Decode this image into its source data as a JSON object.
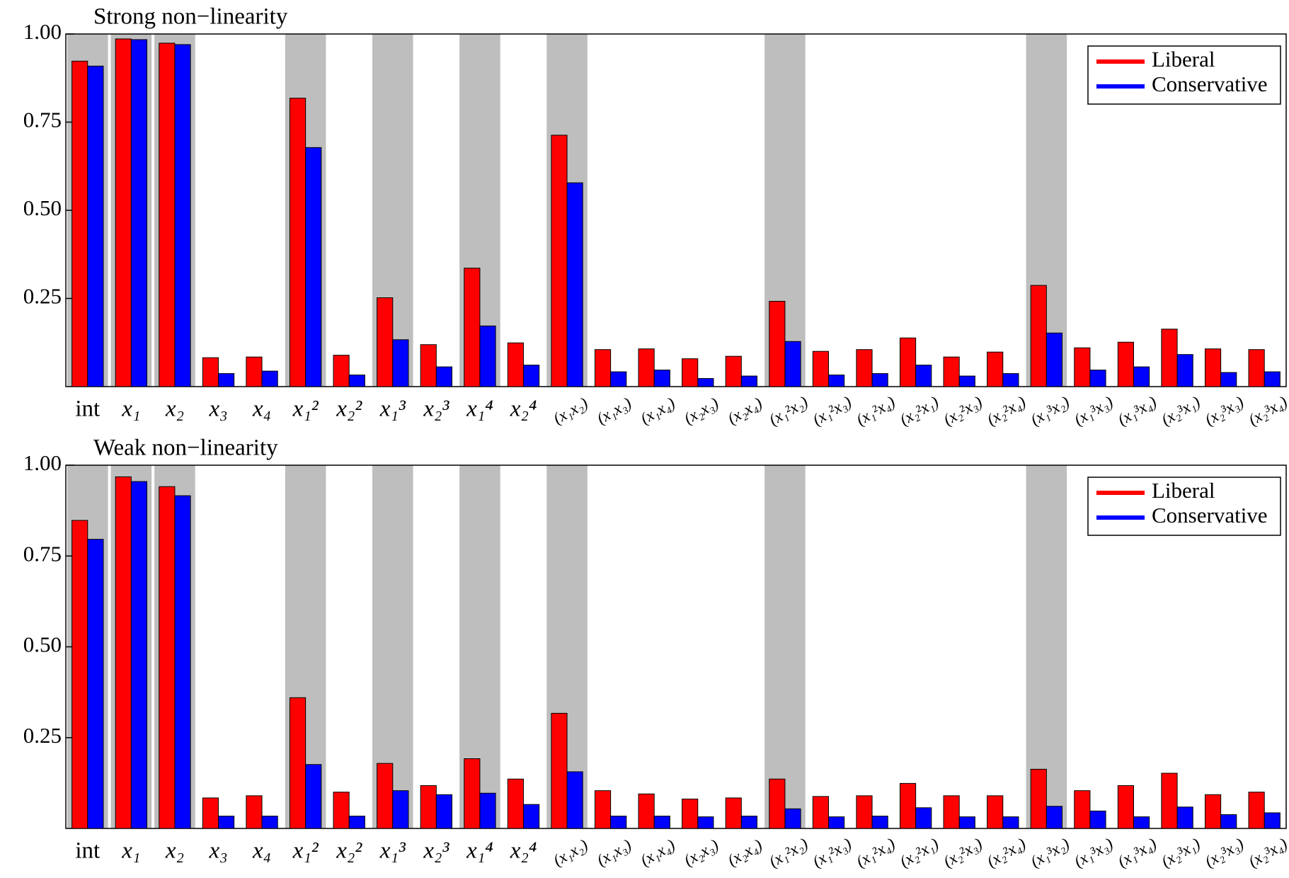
{
  "chart_data": [
    {
      "type": "bar",
      "title": "Strong non−linearity",
      "categories": [
        "int",
        "x₁",
        "x₂",
        "x₃",
        "x₄",
        "x₁²",
        "x₂²",
        "x₁³",
        "x₂³",
        "x₁⁴",
        "x₂⁴",
        "(x₁x₂)",
        "(x₁x₃)",
        "(x₁x₄)",
        "(x₂x₃)",
        "(x₂x₄)",
        "(x₁²x₂)",
        "(x₁²x₃)",
        "(x₁²x₄)",
        "(x₂²x₁)",
        "(x₂²x₃)",
        "(x₂²x₄)",
        "(x₁³x₂)",
        "(x₁³x₃)",
        "(x₁³x₄)",
        "(x₂³x₁)",
        "(x₂³x₃)",
        "(x₂³x₄)"
      ],
      "shaded": [
        true,
        true,
        true,
        false,
        false,
        true,
        false,
        true,
        false,
        true,
        false,
        true,
        false,
        false,
        false,
        false,
        true,
        false,
        false,
        false,
        false,
        false,
        true,
        false,
        false,
        false,
        false,
        false
      ],
      "series": [
        {
          "name": "Liberal",
          "color": "#ff0000",
          "values": [
            0.923,
            0.986,
            0.974,
            0.082,
            0.084,
            0.818,
            0.089,
            0.252,
            0.119,
            0.336,
            0.124,
            0.713,
            0.105,
            0.107,
            0.079,
            0.086,
            0.242,
            0.1,
            0.105,
            0.138,
            0.084,
            0.098,
            0.287,
            0.11,
            0.126,
            0.163,
            0.107,
            0.105
          ]
        },
        {
          "name": "Conservative",
          "color": "#0000ff",
          "values": [
            0.909,
            0.984,
            0.97,
            0.037,
            0.044,
            0.678,
            0.033,
            0.133,
            0.056,
            0.172,
            0.061,
            0.578,
            0.042,
            0.047,
            0.023,
            0.03,
            0.128,
            0.033,
            0.037,
            0.061,
            0.03,
            0.037,
            0.152,
            0.047,
            0.056,
            0.091,
            0.04,
            0.042
          ]
        }
      ],
      "ylim": [
        0,
        1
      ],
      "yticks": [
        0.25,
        {
          "value": 0.5,
          "label": "0.50"
        },
        0.75,
        {
          "value": 1,
          "label": "1.00"
        }
      ],
      "legend": "upper right",
      "shade_color": "#bebebe"
    },
    {
      "type": "bar",
      "title": "Weak non−linearity",
      "categories": [
        "int",
        "x₁",
        "x₂",
        "x₃",
        "x₄",
        "x₁²",
        "x₂²",
        "x₁³",
        "x₂³",
        "x₁⁴",
        "x₂⁴",
        "(x₁x₂)",
        "(x₁x₃)",
        "(x₁x₄)",
        "(x₂x₃)",
        "(x₂x₄)",
        "(x₁²x₂)",
        "(x₁²x₃)",
        "(x₁²x₄)",
        "(x₂²x₁)",
        "(x₂²x₃)",
        "(x₂²x₄)",
        "(x₁³x₂)",
        "(x₁³x₃)",
        "(x₁³x₄)",
        "(x₂³x₁)",
        "(x₂³x₃)",
        "(x₂³x₄)"
      ],
      "shaded": [
        true,
        true,
        true,
        false,
        false,
        true,
        false,
        true,
        false,
        true,
        false,
        true,
        false,
        false,
        false,
        false,
        true,
        false,
        false,
        false,
        false,
        false,
        true,
        false,
        false,
        false,
        false,
        false
      ],
      "series": [
        {
          "name": "Liberal",
          "color": "#ff0000",
          "values": [
            0.848,
            0.968,
            0.941,
            0.084,
            0.09,
            0.36,
            0.1,
            0.179,
            0.118,
            0.192,
            0.136,
            0.317,
            0.104,
            0.095,
            0.081,
            0.084,
            0.136,
            0.088,
            0.09,
            0.124,
            0.09,
            0.09,
            0.163,
            0.104,
            0.118,
            0.152,
            0.093,
            0.1
          ]
        },
        {
          "name": "Conservative",
          "color": "#0000ff",
          "values": [
            0.796,
            0.955,
            0.916,
            0.034,
            0.034,
            0.176,
            0.034,
            0.104,
            0.093,
            0.097,
            0.066,
            0.156,
            0.034,
            0.034,
            0.032,
            0.034,
            0.054,
            0.032,
            0.034,
            0.057,
            0.032,
            0.032,
            0.061,
            0.048,
            0.032,
            0.059,
            0.038,
            0.043
          ]
        }
      ],
      "ylim": [
        0,
        1
      ],
      "yticks": [
        0.25,
        {
          "value": 0.5,
          "label": "0.50"
        },
        0.75,
        {
          "value": 1,
          "label": "1.00"
        }
      ],
      "legend": "upper right",
      "shade_color": "#bebebe"
    }
  ]
}
